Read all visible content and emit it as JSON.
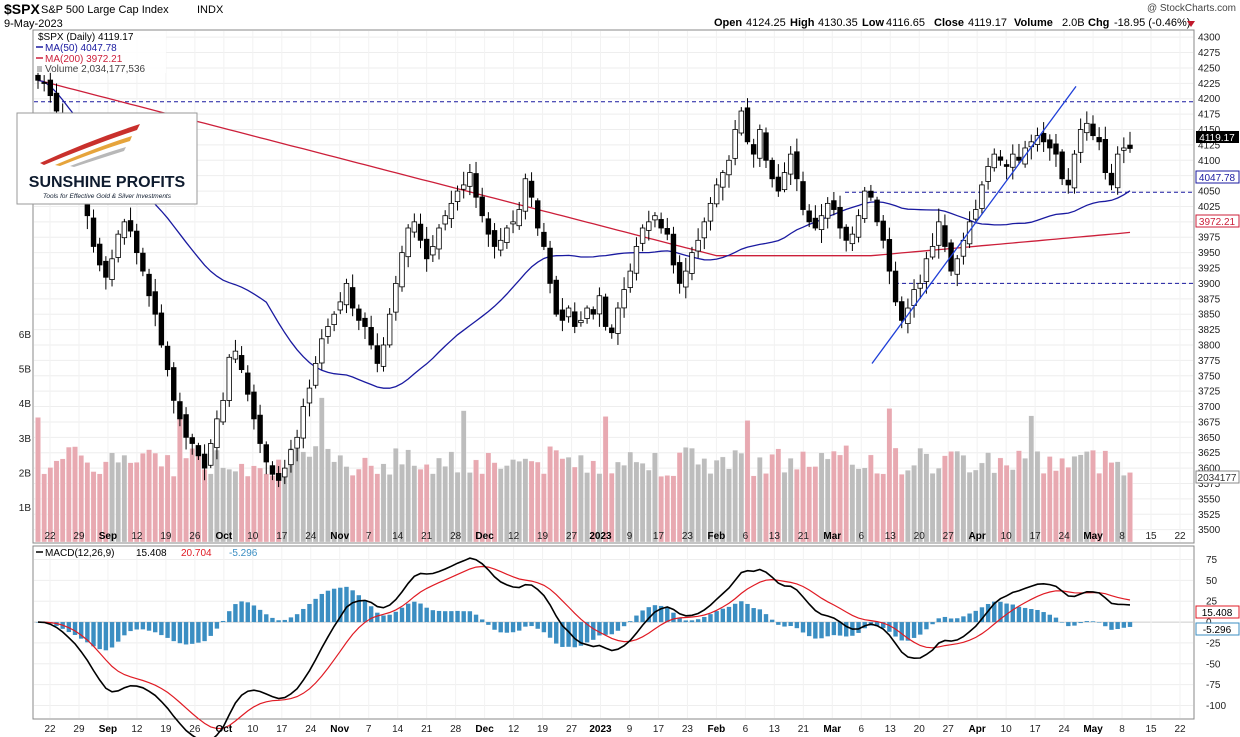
{
  "header": {
    "symbol": "$SPX",
    "name": "S&P 500 Large Cap Index",
    "exchange": "INDX",
    "date": "9-May-2023",
    "copyright": "@ StockCharts.com",
    "open_label": "Open",
    "open": "4124.25",
    "high_label": "High",
    "high": "4130.35",
    "low_label": "Low",
    "low": "4116.65",
    "close_label": "Close",
    "close": "4119.17",
    "volume_label": "Volume",
    "volume": "2.0B",
    "chg_label": "Chg",
    "chg": "-18.95 (-0.46%)"
  },
  "legend": {
    "price": "$SPX (Daily) 4119.17",
    "ma50": "MA(50) 4047.78",
    "ma200": "MA(200) 3972.21",
    "volume": "Volume 2,034,177,536",
    "macd_label": "MACD(12,26,9)",
    "macd_value": "15.408",
    "signal_value": "20.704",
    "hist_value": "-5.296"
  },
  "badges": {
    "price": "4119.17",
    "ma50": "4047.78",
    "ma200": "3972.21",
    "volume": "2034177",
    "macd": "15.408",
    "hist": "-5.296"
  },
  "logo": {
    "title": "SUNSHINE PROFITS",
    "tagline": "Tools for Effective Gold & Silver Investments"
  },
  "colors": {
    "up_candle": "#ffffff",
    "down_candle": "#000000",
    "ma50": "#1a1aa0",
    "ma200": "#cc1f3a",
    "volume_up": "#bdbdbd",
    "volume_down": "#e8a9b1",
    "macd_line": "#000000",
    "signal_line": "#e01b24",
    "histogram": "#3b8ec2",
    "trendline": "#1f3fd8",
    "dashed_level": "#1a1aa0"
  },
  "chart_data": {
    "type": "candlestick",
    "title": "$SPX S&P 500 Large Cap Index",
    "price_axis": {
      "ylim": [
        3480,
        4310
      ],
      "ticks": [
        3500,
        3525,
        3550,
        3575,
        3600,
        3625,
        3650,
        3675,
        3700,
        3725,
        3750,
        3775,
        3800,
        3825,
        3850,
        3875,
        3900,
        3925,
        3950,
        3975,
        4000,
        4025,
        4050,
        4075,
        4100,
        4125,
        4150,
        4175,
        4200,
        4225,
        4250,
        4275,
        4300
      ]
    },
    "volume_axis": {
      "ylim": [
        0,
        7
      ],
      "ticks": [
        "1B",
        "2B",
        "3B",
        "4B",
        "5B",
        "6B"
      ]
    },
    "macd_axis": {
      "ylim": [
        -115,
        90
      ],
      "ticks": [
        75,
        50,
        25,
        0,
        -25,
        -50,
        -75,
        -100
      ]
    },
    "x_ticks": [
      "22",
      "29",
      "Sep",
      "12",
      "19",
      "26",
      "Oct",
      "10",
      "17",
      "24",
      "Nov",
      "7",
      "14",
      "21",
      "28",
      "Dec",
      "12",
      "19",
      "27",
      "2023",
      "9",
      "17",
      "23",
      "Feb",
      "6",
      "13",
      "21",
      "Mar",
      "6",
      "13",
      "20",
      "27",
      "Apr",
      "10",
      "17",
      "24",
      "May",
      "8",
      "15",
      "22"
    ],
    "x_ticks_bold": [
      "Sep",
      "Oct",
      "Nov",
      "Dec",
      "2023",
      "Feb",
      "Mar",
      "Apr",
      "May"
    ],
    "horizontal_levels": [
      4195,
      4048,
      3900
    ],
    "trendline": {
      "from": [
        3770
      ],
      "to": [
        4220
      ]
    },
    "price_path": [
      4230,
      4225,
      4205,
      4180,
      4150,
      4120,
      4095,
      4050,
      4010,
      3960,
      3930,
      3910,
      3940,
      3980,
      4000,
      3985,
      3950,
      3920,
      3880,
      3850,
      3800,
      3760,
      3710,
      3680,
      3650,
      3640,
      3620,
      3600,
      3640,
      3680,
      3710,
      3780,
      3790,
      3760,
      3720,
      3680,
      3640,
      3610,
      3590,
      3580,
      3600,
      3630,
      3650,
      3700,
      3730,
      3770,
      3810,
      3830,
      3850,
      3870,
      3900,
      3860,
      3840,
      3830,
      3800,
      3770,
      3800,
      3850,
      3900,
      3950,
      3990,
      4000,
      3970,
      3940,
      3960,
      3990,
      4010,
      4030,
      4050,
      4060,
      4080,
      4040,
      4010,
      3980,
      3960,
      3970,
      3990,
      4000,
      4020,
      4070,
      4040,
      3990,
      3960,
      3900,
      3850,
      3840,
      3860,
      3830,
      3840,
      3860,
      3850,
      3880,
      3830,
      3820,
      3860,
      3890,
      3920,
      3960,
      3990,
      4000,
      4010,
      3990,
      3980,
      3930,
      3900,
      3920,
      3950,
      3970,
      4000,
      4030,
      4060,
      4080,
      4100,
      4150,
      4180,
      4130,
      4110,
      4150,
      4100,
      4070,
      4050,
      4080,
      4110,
      4070,
      4020,
      4000,
      3990,
      4010,
      4030,
      4020,
      3990,
      3970,
      3980,
      4010,
      4050,
      4040,
      4000,
      3970,
      3920,
      3870,
      3840,
      3860,
      3890,
      3900,
      3940,
      3960,
      4000,
      3960,
      3920,
      3940,
      3970,
      4000,
      4020,
      4060,
      4090,
      4110,
      4100,
      4090,
      4110,
      4100,
      4120,
      4130,
      4140,
      4130,
      4120,
      4110,
      4070,
      4060,
      4110,
      4150,
      4160,
      4140,
      4130,
      4080,
      4060,
      4110,
      4120,
      4119.17
    ],
    "series": [
      {
        "name": "MA(50)",
        "last": 4047.78
      },
      {
        "name": "MA(200)",
        "last": 3972.21
      },
      {
        "name": "MACD(12,26,9)",
        "last": 15.408
      },
      {
        "name": "Signal",
        "last": 20.704
      },
      {
        "name": "Histogram",
        "last": -5.296
      }
    ]
  }
}
